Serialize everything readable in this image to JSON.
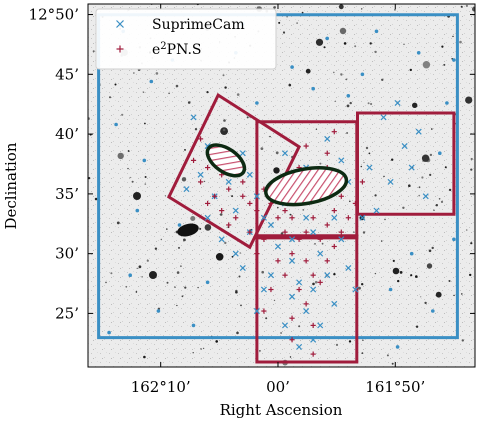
{
  "chart_data": {
    "type": "scatter",
    "xlabel": "Right Ascension",
    "ylabel": "Declination",
    "xlim": [
      162.27,
      161.72
    ],
    "ylim": [
      12.342,
      12.848
    ],
    "x_ticks": [
      {
        "value": 162.1667,
        "label": "162°10’"
      },
      {
        "value": 162.0,
        "label": "00’"
      },
      {
        "value": 161.8333,
        "label": "161°50’"
      }
    ],
    "y_ticks": [
      {
        "value": 12.8333,
        "label": "12°50’"
      },
      {
        "value": 12.75,
        "label": "45’"
      },
      {
        "value": 12.6667,
        "label": "40’"
      },
      {
        "value": 12.5833,
        "label": "35’"
      },
      {
        "value": 12.5,
        "label": "30’"
      },
      {
        "value": 12.4167,
        "label": "25’"
      }
    ],
    "legend": {
      "position": "top-left",
      "entries": [
        {
          "label": "SuprimeCam",
          "marker": "x",
          "color": "#3a8fc4"
        },
        {
          "label_base": "e",
          "label_sup": "2",
          "label_rest": "PN.S",
          "marker": "+",
          "color": "#a01c3c"
        }
      ]
    },
    "series": [
      {
        "name": "SuprimeCam",
        "color": "#3a8fc4",
        "marker": "x",
        "footprint": [
          [
            162.255,
            12.833
          ],
          [
            161.745,
            12.833
          ],
          [
            161.745,
            12.383
          ],
          [
            162.255,
            12.383
          ]
        ],
        "points": [
          [
            162.12,
            12.69
          ],
          [
            162.1,
            12.65
          ],
          [
            162.08,
            12.63
          ],
          [
            162.07,
            12.6
          ],
          [
            162.09,
            12.58
          ],
          [
            162.05,
            12.64
          ],
          [
            162.04,
            12.61
          ],
          [
            162.03,
            12.58
          ],
          [
            162.06,
            12.56
          ],
          [
            162.02,
            12.55
          ],
          [
            162.04,
            12.53
          ],
          [
            161.99,
            12.57
          ],
          [
            161.97,
            12.6
          ],
          [
            161.96,
            12.55
          ],
          [
            161.95,
            12.53
          ],
          [
            161.93,
            12.58
          ],
          [
            161.92,
            12.55
          ],
          [
            161.94,
            12.5
          ],
          [
            161.98,
            12.49
          ],
          [
            162.0,
            12.51
          ],
          [
            162.01,
            12.47
          ],
          [
            161.97,
            12.46
          ],
          [
            161.95,
            12.45
          ],
          [
            161.93,
            12.47
          ],
          [
            161.91,
            12.52
          ],
          [
            161.9,
            12.48
          ],
          [
            161.96,
            12.42
          ],
          [
            161.94,
            12.4
          ],
          [
            161.98,
            12.44
          ],
          [
            162.02,
            12.45
          ],
          [
            162.03,
            12.42
          ],
          [
            161.92,
            12.43
          ],
          [
            161.89,
            12.45
          ],
          [
            161.95,
            12.38
          ],
          [
            161.97,
            12.37
          ],
          [
            161.99,
            12.4
          ],
          [
            162.06,
            12.5
          ],
          [
            162.08,
            12.52
          ],
          [
            162.1,
            12.55
          ],
          [
            162.05,
            12.48
          ],
          [
            161.86,
            12.56
          ],
          [
            161.84,
            12.6
          ],
          [
            161.82,
            12.65
          ],
          [
            161.8,
            12.67
          ],
          [
            161.85,
            12.69
          ],
          [
            161.83,
            12.71
          ],
          [
            161.81,
            12.62
          ],
          [
            161.79,
            12.58
          ],
          [
            161.87,
            12.62
          ],
          [
            161.88,
            12.55
          ],
          [
            161.9,
            12.6
          ],
          [
            161.91,
            12.63
          ],
          [
            161.99,
            12.64
          ],
          [
            161.93,
            12.66
          ],
          [
            162.0,
            12.6
          ],
          [
            161.96,
            12.62
          ],
          [
            162.11,
            12.61
          ],
          [
            162.13,
            12.59
          ],
          [
            162.01,
            12.54
          ],
          [
            161.98,
            12.52
          ]
        ],
        "field_dots": [
          [
            162.22,
            12.81
          ],
          [
            162.05,
            12.82
          ],
          [
            161.93,
            12.8
          ],
          [
            161.8,
            12.78
          ],
          [
            162.18,
            12.74
          ],
          [
            161.98,
            12.76
          ],
          [
            161.88,
            12.75
          ],
          [
            161.76,
            12.71
          ],
          [
            162.23,
            12.68
          ],
          [
            161.77,
            12.64
          ],
          [
            162.2,
            12.56
          ],
          [
            162.14,
            12.54
          ],
          [
            161.75,
            12.52
          ],
          [
            162.21,
            12.47
          ],
          [
            161.84,
            12.45
          ],
          [
            162.17,
            12.42
          ],
          [
            161.78,
            12.42
          ],
          [
            162.24,
            12.39
          ],
          [
            161.83,
            12.37
          ],
          [
            162.03,
            12.71
          ],
          [
            161.95,
            12.73
          ],
          [
            162.15,
            12.77
          ],
          [
            161.86,
            12.81
          ],
          [
            162.1,
            12.46
          ],
          [
            161.81,
            12.5
          ],
          [
            162.06,
            12.78
          ],
          [
            161.9,
            12.72
          ],
          [
            162.19,
            12.63
          ],
          [
            161.75,
            12.77
          ],
          [
            162.12,
            12.4
          ]
        ]
      },
      {
        "name_base": "e",
        "name_sup": "2",
        "name_rest": "PN.S",
        "color": "#a01c3c",
        "marker": "+",
        "footprints": [
          [
            [
              162.085,
              12.721
            ],
            [
              161.97,
              12.649
            ],
            [
              162.04,
              12.509
            ],
            [
              162.155,
              12.579
            ]
          ],
          [
            [
              162.03,
              12.684
            ],
            [
              161.888,
              12.684
            ],
            [
              161.888,
              12.522
            ],
            [
              162.03,
              12.522
            ]
          ],
          [
            [
              161.887,
              12.696
            ],
            [
              161.75,
              12.696
            ],
            [
              161.75,
              12.555
            ],
            [
              161.887,
              12.555
            ]
          ],
          [
            [
              162.03,
              12.525
            ],
            [
              161.888,
              12.525
            ],
            [
              161.888,
              12.349
            ],
            [
              162.03,
              12.349
            ]
          ]
        ],
        "points": [
          [
            162.11,
            12.66
          ],
          [
            162.09,
            12.64
          ],
          [
            162.1,
            12.62
          ],
          [
            162.12,
            12.63
          ],
          [
            162.08,
            12.61
          ],
          [
            162.06,
            12.62
          ],
          [
            162.07,
            12.59
          ],
          [
            162.09,
            12.58
          ],
          [
            162.11,
            12.6
          ],
          [
            162.05,
            12.6
          ],
          [
            162.04,
            12.57
          ],
          [
            162.06,
            12.55
          ],
          [
            162.03,
            12.56
          ],
          [
            162.08,
            12.56
          ],
          [
            162.02,
            12.59
          ],
          [
            162.0,
            12.58
          ],
          [
            161.99,
            12.56
          ],
          [
            161.98,
            12.55
          ],
          [
            161.97,
            12.57
          ],
          [
            161.96,
            12.59
          ],
          [
            161.95,
            12.61
          ],
          [
            161.94,
            12.58
          ],
          [
            161.95,
            12.55
          ],
          [
            161.96,
            12.53
          ],
          [
            161.94,
            12.52
          ],
          [
            161.93,
            12.54
          ],
          [
            161.92,
            12.56
          ],
          [
            161.91,
            12.58
          ],
          [
            161.92,
            12.6
          ],
          [
            161.93,
            12.62
          ],
          [
            161.97,
            12.52
          ],
          [
            161.99,
            12.53
          ],
          [
            162.0,
            12.55
          ],
          [
            162.01,
            12.57
          ],
          [
            161.98,
            12.5
          ],
          [
            161.96,
            12.49
          ],
          [
            161.95,
            12.47
          ],
          [
            161.97,
            12.45
          ],
          [
            161.99,
            12.47
          ],
          [
            162.0,
            12.49
          ],
          [
            161.94,
            12.46
          ],
          [
            161.96,
            12.43
          ],
          [
            161.98,
            12.41
          ],
          [
            161.95,
            12.4
          ],
          [
            162.02,
            12.52
          ],
          [
            162.03,
            12.5
          ],
          [
            162.01,
            12.45
          ],
          [
            162.02,
            12.42
          ],
          [
            161.93,
            12.49
          ],
          [
            161.92,
            12.51
          ],
          [
            161.9,
            12.55
          ],
          [
            161.91,
            12.53
          ],
          [
            161.89,
            12.57
          ],
          [
            161.88,
            12.6
          ],
          [
            161.97,
            12.62
          ],
          [
            161.99,
            12.6
          ],
          [
            162.04,
            12.53
          ],
          [
            162.05,
            12.58
          ],
          [
            162.07,
            12.54
          ],
          [
            161.98,
            12.38
          ],
          [
            161.95,
            12.36
          ],
          [
            161.93,
            12.64
          ],
          [
            161.92,
            12.67
          ],
          [
            161.96,
            12.65
          ],
          [
            162.1,
            12.57
          ]
        ]
      }
    ],
    "galaxy_ellipses": [
      {
        "center": [
          162.074,
          12.63
        ],
        "rx_deg": 0.03,
        "ry_deg": 0.016,
        "angle": 35
      },
      {
        "center": [
          161.96,
          12.594
        ],
        "rx_deg": 0.058,
        "ry_deg": 0.024,
        "angle": -10
      }
    ]
  }
}
